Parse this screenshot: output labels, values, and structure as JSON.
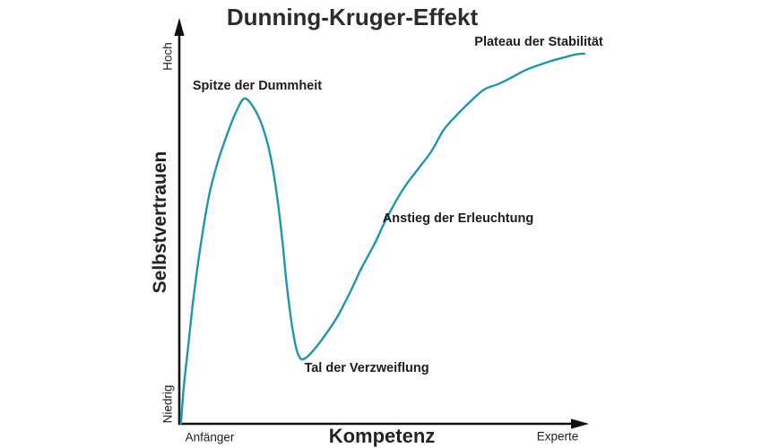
{
  "chart_data": {
    "type": "line",
    "title": "Dunning-Kruger-Effekt",
    "xlabel": "Kompetenz",
    "ylabel": "Selbstvertrauen",
    "x_axis": {
      "min_label": "Anfänger",
      "max_label": "Experte",
      "range": [
        0,
        100
      ],
      "numeric_ticks": false
    },
    "y_axis": {
      "min_label": "Niedrig",
      "max_label": "Hoch",
      "range": [
        0,
        100
      ],
      "numeric_ticks": false
    },
    "grid": false,
    "legend": false,
    "background_color": "#ffffff",
    "line_color": "#1E95B2",
    "axis_color": "#111111",
    "series": [
      {
        "name": "Selbstvertrauen",
        "points": [
          [
            0.4,
            0.0
          ],
          [
            1.1,
            9.1
          ],
          [
            2.2,
            19.3
          ],
          [
            3.5,
            31.3
          ],
          [
            5.3,
            44.6
          ],
          [
            7.3,
            56.5
          ],
          [
            9.5,
            65.0
          ],
          [
            11.9,
            72.1
          ],
          [
            14.1,
            77.6
          ],
          [
            16.0,
            80.5
          ],
          [
            18.2,
            78.3
          ],
          [
            20.4,
            73.6
          ],
          [
            22.4,
            66.1
          ],
          [
            24.0,
            56.1
          ],
          [
            25.3,
            45.0
          ],
          [
            26.4,
            33.9
          ],
          [
            27.7,
            23.9
          ],
          [
            28.8,
            18.2
          ],
          [
            29.9,
            16.0
          ],
          [
            31.4,
            16.6
          ],
          [
            33.4,
            18.8
          ],
          [
            35.8,
            22.0
          ],
          [
            38.7,
            26.4
          ],
          [
            41.8,
            32.4
          ],
          [
            44.6,
            38.4
          ],
          [
            47.9,
            44.6
          ],
          [
            51.0,
            51.2
          ],
          [
            54.9,
            58.1
          ],
          [
            58.5,
            63.0
          ],
          [
            61.8,
            67.4
          ],
          [
            64.8,
            72.7
          ],
          [
            68.1,
            76.5
          ],
          [
            71.4,
            79.8
          ],
          [
            74.7,
            82.7
          ],
          [
            78.0,
            84.0
          ],
          [
            81.3,
            85.6
          ],
          [
            84.6,
            87.4
          ],
          [
            87.9,
            88.7
          ],
          [
            91.2,
            89.8
          ],
          [
            94.5,
            90.7
          ],
          [
            97.1,
            91.4
          ],
          [
            99.3,
            91.6
          ]
        ]
      }
    ],
    "annotations": [
      {
        "label": "Spitze der Dummheit",
        "x": 19.1,
        "y": 83.6
      },
      {
        "label": "Tal der Verzweiflung",
        "x": 45.9,
        "y": 13.7
      },
      {
        "label": "Anstieg der Erleuchtung",
        "x": 68.4,
        "y": 50.8
      },
      {
        "label": "Plateau der Stabilität",
        "x": 88.1,
        "y": 94.5
      }
    ]
  }
}
